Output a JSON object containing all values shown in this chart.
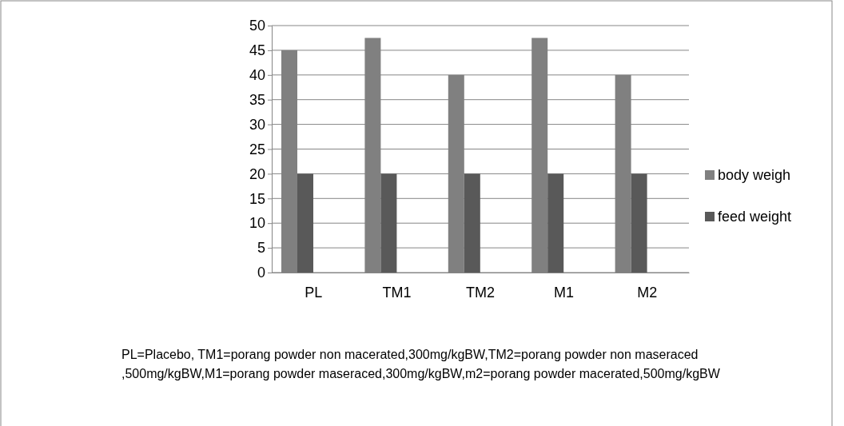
{
  "chart_data": {
    "type": "bar",
    "categories": [
      "PL",
      "TM1",
      "TM2",
      "M1",
      "M2"
    ],
    "series": [
      {
        "name": "body weigh",
        "color": "#808080",
        "values": [
          45,
          47.5,
          40,
          47.5,
          40
        ]
      },
      {
        "name": "feed weight",
        "color": "#595959",
        "values": [
          20,
          20,
          20,
          20,
          20
        ]
      }
    ],
    "ylim": [
      0,
      50
    ],
    "yticks": [
      0,
      5,
      10,
      15,
      20,
      25,
      30,
      35,
      40,
      45,
      50
    ],
    "grid": "y",
    "legend": "right",
    "annotations": [
      "PL=Placebo, TM1=porang powder non macerated,300mg/kgBW,TM2=porang powder non maseraced ,500mg/kgBW,M1=porang powder maseraced,300mg/kgBW,m2=porang powder macerated,500mg/kgBW"
    ]
  }
}
